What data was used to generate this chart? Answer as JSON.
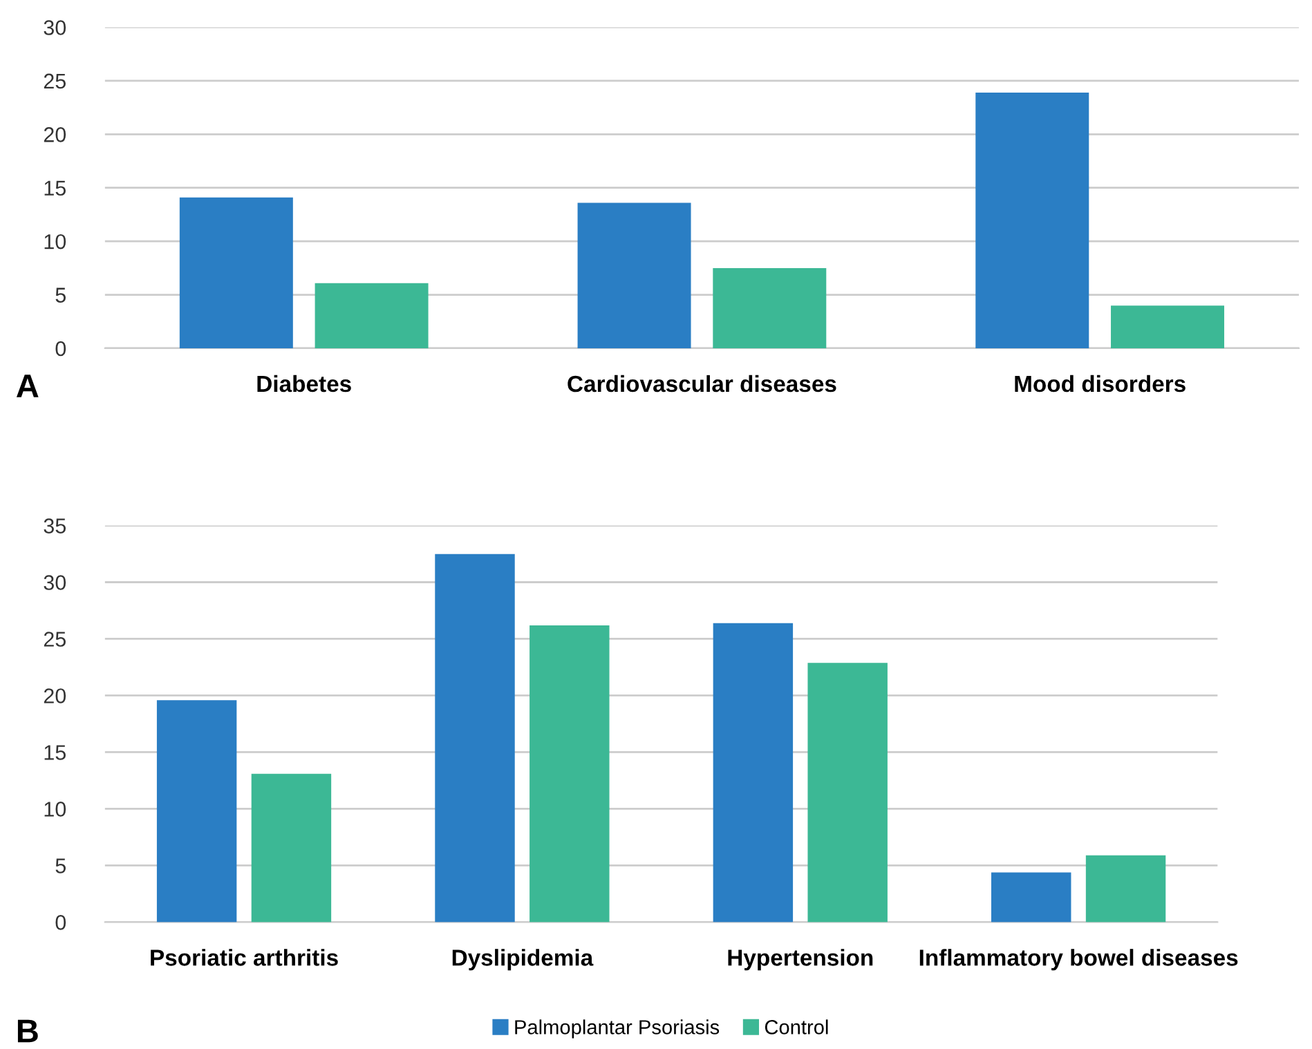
{
  "chart_data": [
    {
      "type": "bar",
      "annotations": [
        "A"
      ],
      "categories": [
        "Diabetes",
        "Cardiovascular diseases",
        "Mood disorders"
      ],
      "series": [
        {
          "color": "#2a7ec4",
          "values": [
            14,
            13.5,
            23.8
          ]
        },
        {
          "color": "#3cb895",
          "values": [
            6,
            7.4,
            3.9
          ]
        }
      ],
      "ylim": [
        0,
        30
      ],
      "yticks": [
        0,
        5,
        10,
        15,
        20,
        25,
        30
      ],
      "grid": "y",
      "legend": false
    },
    {
      "type": "bar",
      "annotations": [
        "B"
      ],
      "categories": [
        "Psoriatic arthritis",
        "Dyslipidemia",
        "Hypertension",
        "Inflammatory bowel diseases"
      ],
      "series": [
        {
          "name": "Palmoplantar Psoriasis",
          "color": "#2a7ec4",
          "values": [
            19.5,
            32.4,
            26.3,
            4.3
          ]
        },
        {
          "name": "Control",
          "color": "#3cb895",
          "values": [
            13,
            26.1,
            22.8,
            5.8
          ]
        }
      ],
      "ylim": [
        0,
        35
      ],
      "yticks": [
        0,
        5,
        10,
        15,
        20,
        25,
        30,
        35
      ],
      "grid": "y",
      "legend": "bottom"
    }
  ]
}
